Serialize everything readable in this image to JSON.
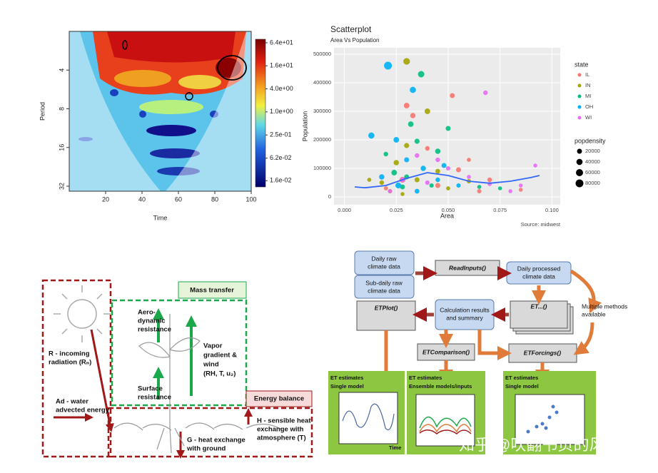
{
  "wavelet": {
    "type": "heatmap",
    "xlabel": "Time",
    "ylabel": "Period",
    "xlim": [
      0,
      100
    ],
    "xticks": [
      20,
      40,
      60,
      80,
      100
    ],
    "ylim": [
      2,
      35
    ],
    "yticks": [
      4,
      8,
      16,
      32
    ],
    "log_y": true,
    "clim": [
      0.011,
      79
    ],
    "cticks": [
      {
        "value": 64,
        "label": "6.4e+01"
      },
      {
        "value": 16,
        "label": "1.6e+01"
      },
      {
        "value": 4,
        "label": "4.0e+00"
      },
      {
        "value": 1,
        "label": "1.0e+00"
      },
      {
        "value": 0.25,
        "label": "2.5e-01"
      },
      {
        "value": 0.062,
        "label": "6.2e-02"
      },
      {
        "value": 0.016,
        "label": "1.6e-02"
      }
    ]
  },
  "chart_data": {
    "type": "scatter",
    "title": "Scatterplot",
    "subtitle": "Area Vs Population",
    "xlabel": "Area",
    "ylabel": "Population",
    "caption": "Source: midwest",
    "xlim": [
      -0.005,
      0.104
    ],
    "xticks": [
      {
        "value": 0,
        "label": "0.000"
      },
      0.025,
      {
        "value": 0.05,
        "label": "0.050"
      },
      0.075,
      {
        "value": 0.1,
        "label": "0.100"
      }
    ],
    "ylim": [
      -27500,
      522500
    ],
    "yticks": [
      0,
      100000,
      200000,
      300000,
      400000,
      500000
    ],
    "grid": true,
    "legend_title": "state",
    "size_title": "popdensity",
    "size_legend": [
      20000,
      40000,
      60000,
      80000
    ],
    "series": [
      {
        "name": "IL",
        "color": "#F8766D",
        "x": [
          0.03,
          0.033,
          0.052,
          0.04,
          0.06,
          0.028,
          0.045,
          0.065,
          0.07,
          0.02,
          0.055,
          0.085
        ],
        "values": [
          320000,
          285000,
          355000,
          170000,
          130000,
          60000,
          40000,
          20000,
          60000,
          30000,
          95000,
          25000
        ],
        "sizes": [
          30000,
          25000,
          20000,
          15000,
          10000,
          35000,
          20000,
          12000,
          15000,
          10000,
          20000,
          8000
        ]
      },
      {
        "name": "IN",
        "color": "#A3A500",
        "x": [
          0.03,
          0.018,
          0.025,
          0.04,
          0.035,
          0.022,
          0.045,
          0.012,
          0.05,
          0.03,
          0.028,
          0.06
        ],
        "values": [
          475000,
          50000,
          120000,
          300000,
          60000,
          20000,
          90000,
          60000,
          30000,
          180000,
          10000,
          55000
        ],
        "sizes": [
          50000,
          15000,
          25000,
          30000,
          20000,
          12000,
          18000,
          10000,
          10000,
          22000,
          8000,
          12000
        ]
      },
      {
        "name": "MI",
        "color": "#00BF7D",
        "x": [
          0.037,
          0.032,
          0.035,
          0.024,
          0.045,
          0.03,
          0.05,
          0.02,
          0.065,
          0.042,
          0.075,
          0.028
        ],
        "values": [
          430000,
          255000,
          195000,
          85000,
          160000,
          70000,
          240000,
          150000,
          35000,
          40000,
          30000,
          35000
        ],
        "sizes": [
          45000,
          28000,
          22000,
          30000,
          25000,
          20000,
          20000,
          15000,
          10000,
          12000,
          8000,
          18000
        ]
      },
      {
        "name": "OH",
        "color": "#00B0F6",
        "x": [
          0.021,
          0.033,
          0.013,
          0.025,
          0.038,
          0.03,
          0.045,
          0.018,
          0.055,
          0.026,
          0.035,
          0.048
        ],
        "values": [
          460000,
          375000,
          215000,
          200000,
          100000,
          130000,
          60000,
          70000,
          40000,
          40000,
          20000,
          110000
        ],
        "sizes": [
          80000,
          40000,
          40000,
          30000,
          25000,
          20000,
          15000,
          25000,
          12000,
          35000,
          18000,
          20000
        ]
      },
      {
        "name": "WI",
        "color": "#E76BF3",
        "x": [
          0.068,
          0.028,
          0.035,
          0.05,
          0.06,
          0.08,
          0.092,
          0.04,
          0.022,
          0.07,
          0.085,
          0.045
        ],
        "values": [
          365000,
          60000,
          145000,
          100000,
          70000,
          20000,
          110000,
          50000,
          20000,
          45000,
          40000,
          130000
        ],
        "sizes": [
          15000,
          20000,
          15000,
          12000,
          10000,
          8000,
          8000,
          14000,
          10000,
          10000,
          8000,
          15000
        ]
      }
    ],
    "trend": {
      "color": "#3366FF",
      "x": [
        0.005,
        0.01,
        0.02,
        0.03,
        0.04,
        0.05,
        0.06,
        0.07,
        0.08,
        0.09,
        0.094
      ],
      "values": [
        35000,
        32000,
        40000,
        65000,
        85000,
        75000,
        55000,
        48000,
        55000,
        68000,
        75000
      ]
    }
  },
  "mass_diagram": {
    "mass_transfer": "Mass transfer",
    "aero": [
      "Aero-",
      "dynamic",
      "resistance"
    ],
    "surface": [
      "Surface",
      "resistance"
    ],
    "vapor": [
      "Vapor",
      "gradient &",
      "wind",
      "(RH, T, u₂)"
    ],
    "radiation": [
      "R - incoming",
      "radiation (Rₙ)"
    ],
    "advected": [
      "Ad - water",
      "advected energy"
    ],
    "energy_balance": "Energy balance",
    "sensible": [
      "H - sensible heat",
      "exchange with",
      "atmosphere (T)"
    ],
    "ground": [
      "G - heat exchange",
      "with ground"
    ]
  },
  "workflow": {
    "raw": [
      "Daily raw",
      "climate data"
    ],
    "subdaily": [
      "Sub-daily raw",
      "climate data"
    ],
    "read": "ReadInputs()",
    "processed": [
      "Daily processed",
      "climate data"
    ],
    "multiple": [
      "Multiple methods",
      "available"
    ],
    "plot": "ETPlot()",
    "calc": [
      "Calculation results",
      "and summary"
    ],
    "et": "ET...()",
    "comparison": "ETComparison()",
    "forcings": "ETForcings()",
    "panel1": [
      "ET estimates",
      "Single model"
    ],
    "panel2": [
      "ET estimates",
      "Ensemble models/inputs"
    ],
    "panel3": [
      "ET estimates",
      "Single model"
    ],
    "time": "Time"
  },
  "watermark": "知乎 @吹翻书页的风"
}
